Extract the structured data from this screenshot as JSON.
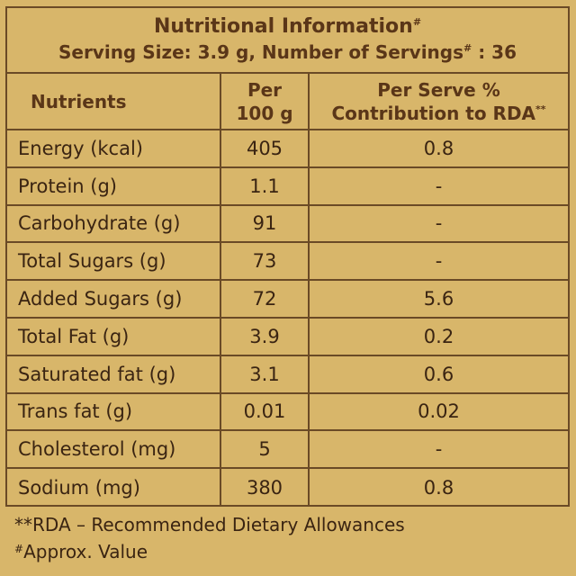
{
  "title": "Nutritional Information",
  "title_mark": "#",
  "serving": {
    "prefix": "Serving Size: 3.9 g, Number of Servings",
    "mark": "#",
    "suffix": " : 36"
  },
  "headers": {
    "nutrients": "Nutrients",
    "per100_line1": "Per",
    "per100_line2": "100 g",
    "rda_line1": "Per Serve %",
    "rda_line2": "Contribution to RDA",
    "rda_mark": "**"
  },
  "rows": [
    {
      "name": "Energy (kcal)",
      "per100": "405",
      "rda": "0.8"
    },
    {
      "name": "Protein (g)",
      "per100": "1.1",
      "rda": "-"
    },
    {
      "name": "Carbohydrate (g)",
      "per100": "91",
      "rda": "-"
    },
    {
      "name": "Total Sugars (g)",
      "per100": "73",
      "rda": "-"
    },
    {
      "name": "Added Sugars (g)",
      "per100": "72",
      "rda": "5.6"
    },
    {
      "name": "Total Fat (g)",
      "per100": "3.9",
      "rda": "0.2"
    },
    {
      "name": "Saturated fat (g)",
      "per100": "3.1",
      "rda": "0.6"
    },
    {
      "name": "Trans fat (g)",
      "per100": "0.01",
      "rda": "0.02"
    },
    {
      "name": "Cholesterol (mg)",
      "per100": "5",
      "rda": "-"
    },
    {
      "name": "Sodium (mg)",
      "per100": "380",
      "rda": "0.8"
    }
  ],
  "footnotes": {
    "rda": "**RDA – Recommended Dietary Allowances",
    "approx_mark": "#",
    "approx": "Approx. Value"
  },
  "colors": {
    "background": "#d8b66a",
    "border": "#6a4a26",
    "text": "#3a2412"
  }
}
